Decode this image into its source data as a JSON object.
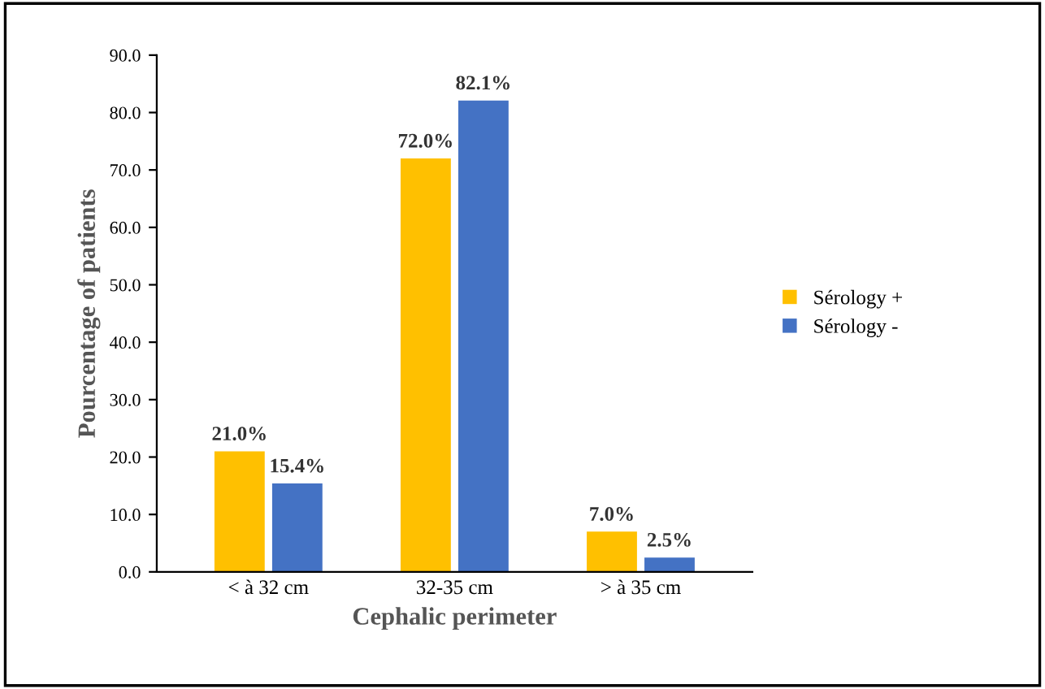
{
  "chart_data": {
    "type": "bar",
    "xlabel": "Cephalic perimeter",
    "ylabel": "Pourcentage of patients",
    "categories": [
      "< à 32 cm",
      "32-35 cm",
      "> à 35 cm"
    ],
    "series": [
      {
        "name": "Sérology +",
        "color": "#ffc000",
        "values": [
          21.0,
          72.0,
          7.0
        ],
        "value_labels": [
          "21.0%",
          "72.0%",
          "7.0%"
        ]
      },
      {
        "name": "Sérology -",
        "color": "#4472c4",
        "values": [
          15.4,
          82.1,
          2.5
        ],
        "value_labels": [
          "15.4%",
          "82.1%",
          "2.5%"
        ]
      }
    ],
    "ylim": [
      0,
      90
    ],
    "yticks": [
      {
        "value": 0,
        "label": "0.0"
      },
      {
        "value": 10,
        "label": "10.0"
      },
      {
        "value": 20,
        "label": "20.0"
      },
      {
        "value": 30,
        "label": "30.0"
      },
      {
        "value": 40,
        "label": "40.0"
      },
      {
        "value": 50,
        "label": "50.0"
      },
      {
        "value": 60,
        "label": "60.0"
      },
      {
        "value": 70,
        "label": "70.0"
      },
      {
        "value": 80,
        "label": "80.0"
      },
      {
        "value": 90,
        "label": "90.0"
      }
    ],
    "legend": "right",
    "grid": false
  }
}
